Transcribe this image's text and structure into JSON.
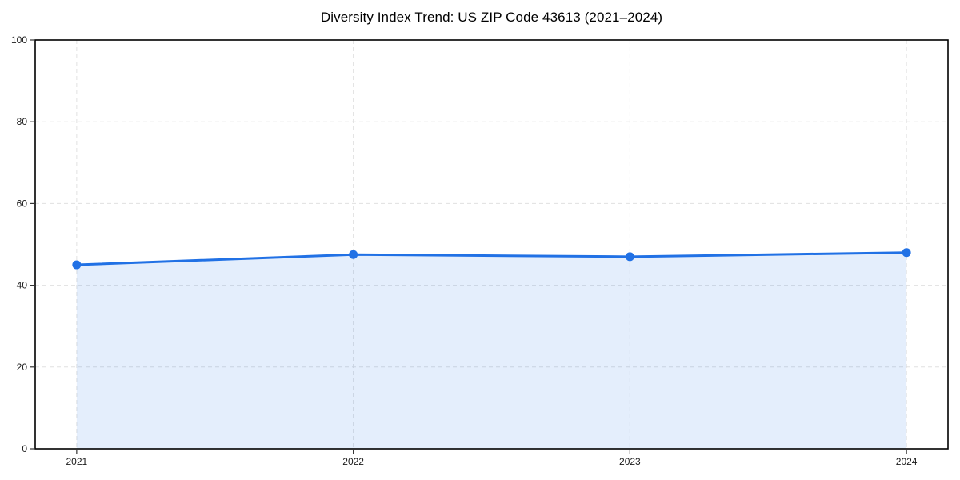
{
  "chart_data": {
    "type": "area",
    "title": "Diversity Index Trend: US ZIP Code 43613 (2021–2024)",
    "categories": [
      "2021",
      "2022",
      "2023",
      "2024"
    ],
    "x": [
      2021,
      2022,
      2023,
      2024
    ],
    "series": [
      {
        "name": "Diversity Index",
        "values": [
          45,
          47.5,
          47,
          48
        ]
      }
    ],
    "values": [
      45,
      47.5,
      47,
      48
    ],
    "xlabel": "",
    "ylabel": "",
    "xlim": [
      2020.85,
      2024.15
    ],
    "ylim": [
      0,
      100
    ],
    "yticks": [
      0,
      20,
      40,
      60,
      80,
      100
    ],
    "ytick_labels": [
      "0",
      "20",
      "40",
      "60",
      "80",
      "100"
    ],
    "grid": {
      "visible": true,
      "style": "dashed",
      "axes": "both"
    },
    "legend": {
      "visible": false,
      "position": "none"
    },
    "marker": "circle",
    "line_width": 3,
    "marker_radius": 5.5,
    "colors": {
      "line": "#2171e5",
      "marker": "#2171e5",
      "fill": "#2171e5",
      "fill_alpha": 0.12,
      "grid": "#e0e0e0",
      "spine": "#000000",
      "tick": "#333333",
      "tick_label": "#1a1a1a",
      "title": "#000000",
      "background": "#ffffff"
    }
  }
}
